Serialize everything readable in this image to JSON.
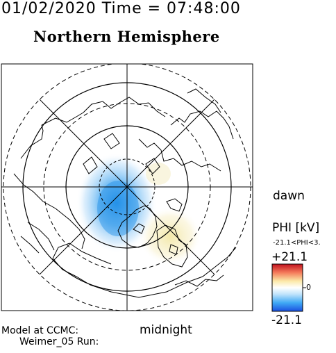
{
  "header": {
    "date_time": "01/02/2020 Time = 07:48:00",
    "hemisphere": "Northern Hemisphere"
  },
  "map": {
    "labels": {
      "dawn": "dawn",
      "midnight": "midnight"
    },
    "colors": {
      "frame": "#000000",
      "coastline": "#000000",
      "negative_potential": "#3d9be8",
      "positive_potential": "#f3e9a6"
    }
  },
  "legend": {
    "title": "PHI [kV]",
    "range_text": "-21.1<PHI<3.",
    "max_label": "+21.1",
    "zero_label": "0",
    "min_label": "-21.1",
    "scale_colors": [
      "#1a4fe0",
      "#3fa9f5",
      "#bfe3fb",
      "#ffffff",
      "#fbe9a8",
      "#f47a5a",
      "#c1121f"
    ]
  },
  "footer": {
    "line1": "Model at CCMC:",
    "line2": "Weimer_05 Run:"
  }
}
